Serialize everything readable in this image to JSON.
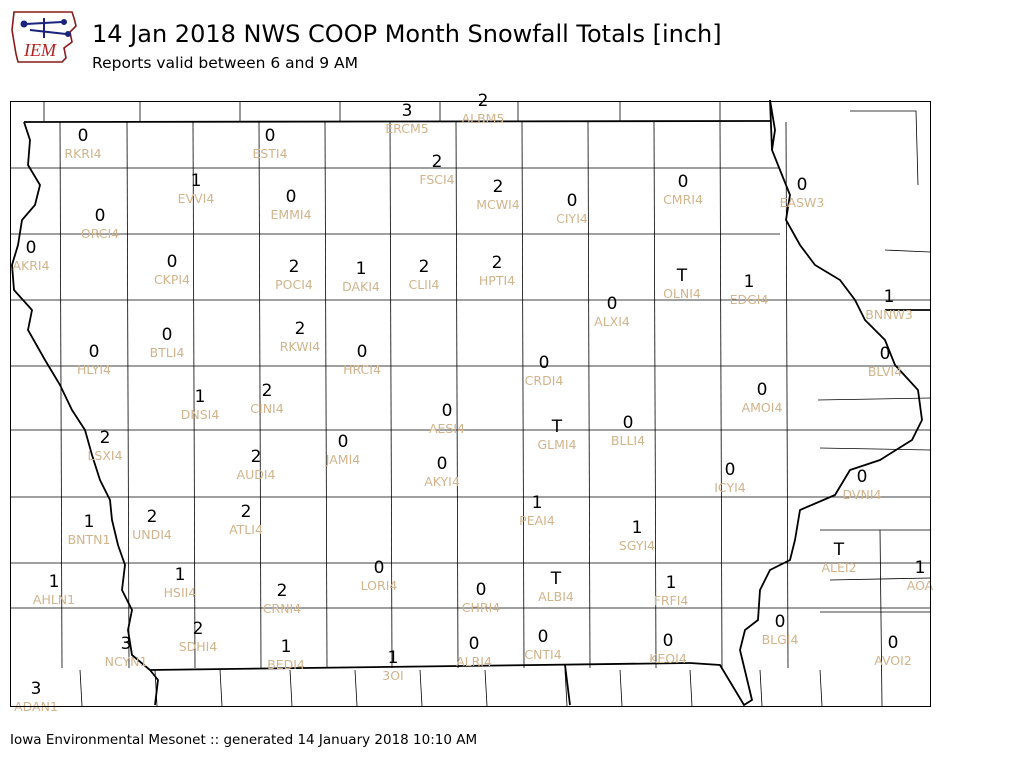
{
  "header": {
    "logo_text": "IEM",
    "title": "14 Jan 2018 NWS COOP Month Snowfall Totals [inch]",
    "subtitle": "Reports valid between 6 and 9 AM"
  },
  "footer": {
    "text": "Iowa Environmental Mesonet :: generated 14 January 2018 10:10 AM"
  },
  "colors": {
    "value_text": "#000000",
    "station_label": "#d2b48c",
    "county_lines": "#000000"
  },
  "stations": [
    {
      "id": "RKRI4",
      "value": "0"
    },
    {
      "id": "ESTI4",
      "value": "0"
    },
    {
      "id": "ERCM5",
      "value": "3"
    },
    {
      "id": "ALBM5",
      "value": "2"
    },
    {
      "id": "FSCI4",
      "value": "2"
    },
    {
      "id": "MCWI4",
      "value": "2"
    },
    {
      "id": "CIYI4",
      "value": "0"
    },
    {
      "id": "CMRI4",
      "value": "0"
    },
    {
      "id": "EASW3",
      "value": "0"
    },
    {
      "id": "EVVI4",
      "value": "1"
    },
    {
      "id": "EMMI4",
      "value": "0"
    },
    {
      "id": "ORCI4",
      "value": "0"
    },
    {
      "id": "AKRI4",
      "value": "0"
    },
    {
      "id": "CKPI4",
      "value": "0"
    },
    {
      "id": "POCI4",
      "value": "2"
    },
    {
      "id": "DAKI4",
      "value": "1"
    },
    {
      "id": "CLII4",
      "value": "2"
    },
    {
      "id": "HPTI4",
      "value": "2"
    },
    {
      "id": "OLNI4",
      "value": "T"
    },
    {
      "id": "EDGI4",
      "value": "1"
    },
    {
      "id": "BNNW3",
      "value": "1"
    },
    {
      "id": "ALXI4",
      "value": "0"
    },
    {
      "id": "BTLI4",
      "value": "0"
    },
    {
      "id": "RKWI4",
      "value": "2"
    },
    {
      "id": "HLYI4",
      "value": "0"
    },
    {
      "id": "HRCI4",
      "value": "0"
    },
    {
      "id": "CRDI4",
      "value": "0"
    },
    {
      "id": "BLVI4",
      "value": "0"
    },
    {
      "id": "AMOI4",
      "value": "0"
    },
    {
      "id": "DNSI4",
      "value": "1"
    },
    {
      "id": "CINI4",
      "value": "2"
    },
    {
      "id": "AESI4",
      "value": "0"
    },
    {
      "id": "BLLI4",
      "value": "0"
    },
    {
      "id": "GLMI4",
      "value": "T"
    },
    {
      "id": "LSXI4",
      "value": "2"
    },
    {
      "id": "AUDI4",
      "value": "2"
    },
    {
      "id": "JAMI4",
      "value": "0"
    },
    {
      "id": "AKYI4",
      "value": "0"
    },
    {
      "id": "ICYI4",
      "value": "0"
    },
    {
      "id": "DVNI4",
      "value": "0"
    },
    {
      "id": "BNTN1",
      "value": "1"
    },
    {
      "id": "UNDI4",
      "value": "2"
    },
    {
      "id": "ATLI4",
      "value": "2"
    },
    {
      "id": "PEAI4",
      "value": "1"
    },
    {
      "id": "SGYI4",
      "value": "1"
    },
    {
      "id": "ALEI2",
      "value": "T"
    },
    {
      "id": "AHLN1",
      "value": "1"
    },
    {
      "id": "HSII4",
      "value": "1"
    },
    {
      "id": "CRNI4",
      "value": "2"
    },
    {
      "id": "LORI4",
      "value": "0"
    },
    {
      "id": "CHRI4",
      "value": "0"
    },
    {
      "id": "ALBI4",
      "value": "T"
    },
    {
      "id": "FRFI4",
      "value": "1"
    },
    {
      "id": "AOA",
      "value": "1"
    },
    {
      "id": "NCYN1",
      "value": "3"
    },
    {
      "id": "SDHI4",
      "value": "2"
    },
    {
      "id": "BEDI4",
      "value": "1"
    },
    {
      "id": "3OI",
      "value": "1"
    },
    {
      "id": "ALRI4",
      "value": "0"
    },
    {
      "id": "CNTI4",
      "value": "0"
    },
    {
      "id": "KEOI4",
      "value": "0"
    },
    {
      "id": "BLGI4",
      "value": "0"
    },
    {
      "id": "AVOI2",
      "value": "0"
    },
    {
      "id": "ADAN1",
      "value": "3"
    }
  ]
}
